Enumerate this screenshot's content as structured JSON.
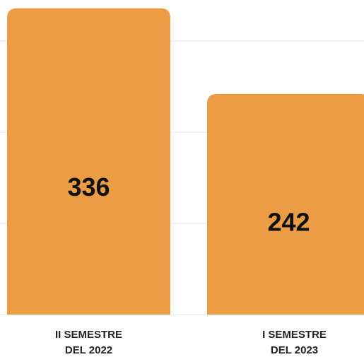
{
  "chart_data": {
    "type": "bar",
    "categories": [
      "II SEMESTRE DEL 2022",
      "I SEMESTRE DEL 2023"
    ],
    "values": [
      336,
      242
    ],
    "color": "#eb9c45",
    "ylim": [
      0,
      345
    ],
    "yticks": [
      0,
      100,
      200,
      300
    ],
    "grid": true
  }
}
